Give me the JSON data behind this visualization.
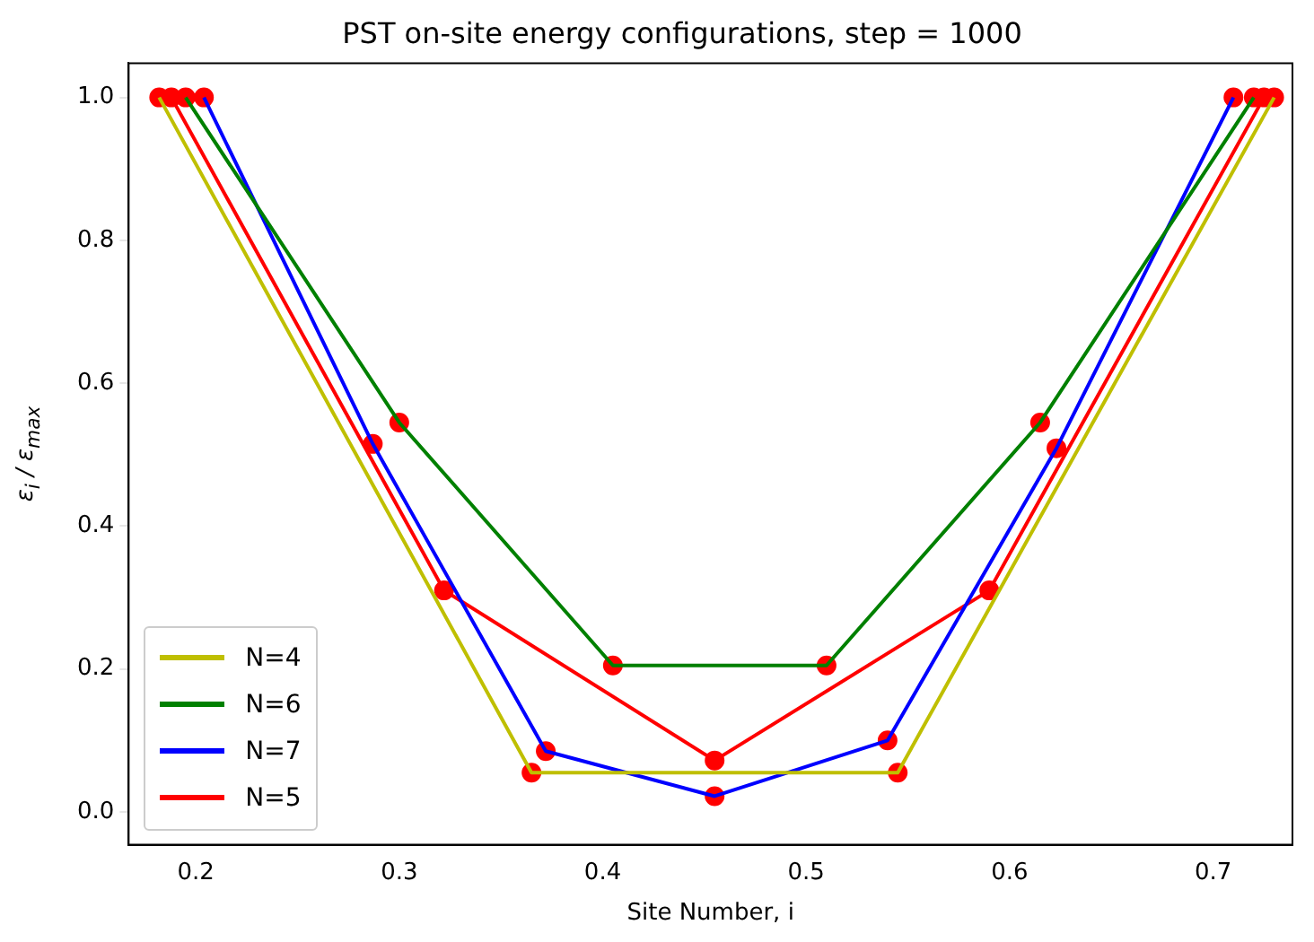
{
  "chart_data": {
    "type": "line",
    "title": "PST on-site energy configurations, step = 1000",
    "xlabel": "Site Number, i",
    "ylabel": "ε$_{i}$ / ε$_{max}$",
    "series": [
      {
        "name": "N=4",
        "color": "#bfbf00",
        "marker": "none",
        "x": [
          0.182,
          0.365,
          0.545,
          0.73
        ],
        "values": [
          1.0,
          0.055,
          0.055,
          1.0
        ]
      },
      {
        "name": "N=6",
        "color": "#008000",
        "marker": "none",
        "x": [
          0.195,
          0.3,
          0.405,
          0.51,
          0.615,
          0.72
        ],
        "values": [
          1.0,
          0.545,
          0.205,
          0.205,
          0.545,
          1.0
        ]
      },
      {
        "name": "N=7",
        "color": "#0000ff",
        "marker": "none",
        "x": [
          0.204,
          0.287,
          0.372,
          0.455,
          0.54,
          0.623,
          0.71
        ],
        "values": [
          1.0,
          0.515,
          0.085,
          0.022,
          0.1,
          0.509,
          1.0
        ]
      },
      {
        "name": "N=5",
        "color": "#ff0000",
        "marker": "none",
        "x": [
          0.188,
          0.322,
          0.455,
          0.59,
          0.725
        ],
        "values": [
          1.0,
          0.31,
          0.072,
          0.31,
          1.0
        ]
      },
      {
        "type": "scatter",
        "color": "#ff0000",
        "marker": "circle",
        "x": [
          0.182,
          0.365,
          0.545,
          0.73,
          0.195,
          0.3,
          0.405,
          0.51,
          0.615,
          0.72,
          0.204,
          0.287,
          0.372,
          0.455,
          0.54,
          0.623,
          0.71,
          0.188,
          0.322,
          0.455,
          0.59,
          0.725
        ],
        "values": [
          1.0,
          0.055,
          0.055,
          1.0,
          1.0,
          0.545,
          0.205,
          0.205,
          0.545,
          1.0,
          1.0,
          0.515,
          0.085,
          0.022,
          0.1,
          0.509,
          1.0,
          1.0,
          0.31,
          0.072,
          0.31,
          1.0
        ]
      }
    ],
    "xlim": [
      0.167,
      0.739
    ],
    "xticks": [
      0.2,
      0.3,
      0.4,
      0.5,
      0.6,
      0.7
    ],
    "ylim": [
      -0.046,
      1.048
    ],
    "yticks": [
      {
        "value": 0,
        "label": "0.0"
      },
      0.2,
      0.4,
      0.6,
      0.8,
      {
        "value": 1,
        "label": "1.0"
      }
    ],
    "grid": false,
    "legend": "bottom left",
    "line_style": "solid"
  }
}
